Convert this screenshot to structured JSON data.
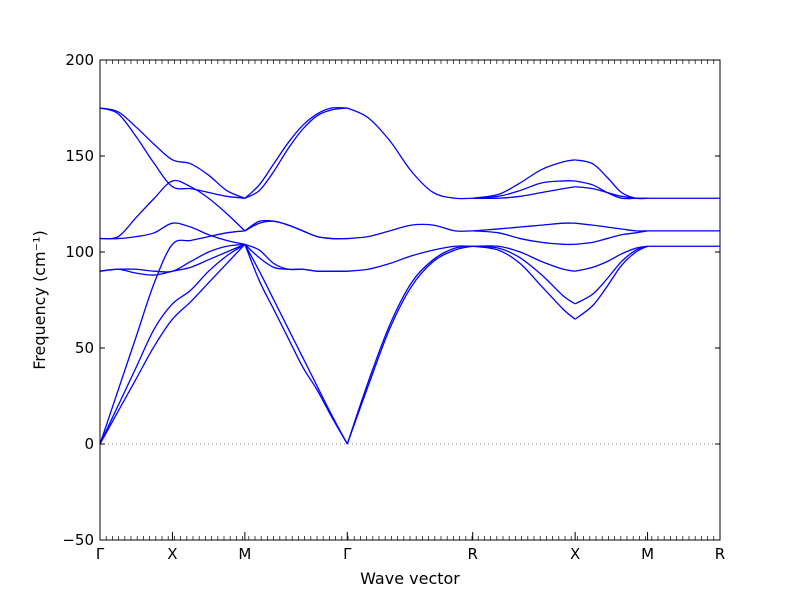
{
  "chart_data": {
    "type": "line",
    "title": "",
    "xlabel": "Wave vector",
    "ylabel": "Frequency (cm⁻¹)",
    "ylim": [
      -50,
      200
    ],
    "y_ticks": [
      -50,
      0,
      50,
      100,
      150,
      200
    ],
    "y_tick_labels": [
      "−50",
      "0",
      "50",
      "100",
      "150",
      "200"
    ],
    "x_ticks": [
      {
        "label": "Γ",
        "x": 0
      },
      {
        "label": "X",
        "x": 1
      },
      {
        "label": "M",
        "x": 2
      },
      {
        "label": "Γ",
        "x": 3.414
      },
      {
        "label": "R",
        "x": 5.146
      },
      {
        "label": "X",
        "x": 6.56
      },
      {
        "label": "M",
        "x": 7.56
      },
      {
        "label": "R",
        "x": 8.56
      }
    ],
    "xlim": [
      0,
      8.56
    ],
    "zero_line": {
      "value": 0,
      "style": "dotted",
      "color": "#808080"
    },
    "series_color": "#0000ff",
    "series": [
      {
        "x": [
          0,
          0.25,
          0.5,
          0.75,
          1,
          1.25,
          1.5,
          1.75,
          2
        ],
        "values": [
          0,
          17,
          34,
          51,
          65,
          74,
          84,
          94,
          104
        ]
      },
      {
        "x": [
          0,
          0.25,
          0.5,
          0.75,
          1,
          1.25,
          1.5,
          1.75,
          2
        ],
        "values": [
          0,
          20,
          40,
          60,
          73,
          80,
          90,
          98,
          104
        ]
      },
      {
        "x": [
          0,
          0.25,
          0.5,
          0.75,
          1,
          1.25,
          1.5,
          1.75,
          2
        ],
        "values": [
          0,
          28,
          56,
          84,
          104,
          106,
          108,
          110,
          111
        ]
      },
      {
        "x": [
          0,
          0.25,
          0.5,
          0.75,
          1,
          1.25,
          1.5,
          1.75,
          2
        ],
        "values": [
          90,
          91,
          89,
          88,
          90,
          92,
          96,
          100,
          104
        ]
      },
      {
        "x": [
          0,
          0.25,
          0.5,
          0.75,
          1,
          1.25,
          1.5,
          1.75,
          2
        ],
        "values": [
          90,
          91,
          91,
          90,
          90,
          95,
          100,
          103,
          104
        ]
      },
      {
        "x": [
          0,
          0.25,
          0.5,
          0.75,
          1,
          1.25,
          1.5,
          1.75,
          2
        ],
        "values": [
          107,
          107,
          108,
          110,
          115,
          113,
          109,
          106,
          104
        ]
      },
      {
        "x": [
          0,
          0.25,
          0.5,
          0.75,
          1,
          1.25,
          1.5,
          1.75,
          2
        ],
        "values": [
          107,
          108,
          118,
          128,
          137,
          134,
          128,
          120,
          111
        ]
      },
      {
        "x": [
          0,
          0.25,
          0.5,
          0.75,
          1,
          1.25,
          1.5,
          1.75,
          2
        ],
        "values": [
          175,
          172,
          160,
          146,
          134,
          133,
          131,
          129,
          128
        ]
      },
      {
        "x": [
          0,
          0.25,
          0.5,
          0.75,
          1,
          1.25,
          1.5,
          1.75,
          2
        ],
        "values": [
          175,
          173,
          165,
          156,
          148,
          146,
          140,
          132,
          128
        ]
      },
      {
        "x": [
          2,
          2.2,
          2.4,
          2.6,
          2.8,
          3.0,
          3.2,
          3.414
        ],
        "values": [
          104,
          97,
          92,
          91,
          91,
          90,
          90,
          90
        ]
      },
      {
        "x": [
          2,
          2.2,
          2.4,
          2.6,
          2.8,
          3.0,
          3.2,
          3.414
        ],
        "values": [
          104,
          101,
          94,
          91,
          91,
          90,
          90,
          90
        ]
      },
      {
        "x": [
          2,
          2.2,
          2.4,
          2.6,
          2.8,
          3.0,
          3.2,
          3.414
        ],
        "values": [
          104,
          85,
          70,
          55,
          40,
          28,
          14,
          0
        ]
      },
      {
        "x": [
          2,
          2.2,
          2.4,
          2.6,
          2.8,
          3.0,
          3.2,
          3.414
        ],
        "values": [
          104,
          90,
          75,
          60,
          45,
          30,
          15,
          0
        ]
      },
      {
        "x": [
          2,
          2.2,
          2.4,
          2.6,
          2.8,
          3.0,
          3.2,
          3.414
        ],
        "values": [
          111,
          115,
          116,
          114,
          111,
          108,
          107,
          107
        ]
      },
      {
        "x": [
          2,
          2.2,
          2.4,
          2.6,
          2.8,
          3.0,
          3.2,
          3.414
        ],
        "values": [
          111,
          116,
          116,
          114,
          111,
          108,
          107,
          107
        ]
      },
      {
        "x": [
          2,
          2.2,
          2.4,
          2.6,
          2.8,
          3.0,
          3.2,
          3.414
        ],
        "values": [
          128,
          135,
          146,
          157,
          166,
          172,
          175,
          175
        ]
      },
      {
        "x": [
          2,
          2.2,
          2.4,
          2.6,
          2.8,
          3.0,
          3.2,
          3.414
        ],
        "values": [
          128,
          132,
          142,
          154,
          164,
          171,
          174,
          175
        ]
      },
      {
        "x": [
          3.414,
          3.7,
          4.0,
          4.3,
          4.6,
          4.9,
          5.146
        ],
        "values": [
          0,
          30,
          60,
          82,
          95,
          101,
          103
        ]
      },
      {
        "x": [
          3.414,
          3.7,
          4.0,
          4.3,
          4.6,
          4.9,
          5.146
        ],
        "values": [
          0,
          32,
          62,
          84,
          96,
          102,
          103
        ]
      },
      {
        "x": [
          3.414,
          3.7,
          4.0,
          4.3,
          4.6,
          4.9,
          5.146
        ],
        "values": [
          90,
          91,
          94,
          98,
          101,
          103,
          103
        ]
      },
      {
        "x": [
          3.414,
          3.7,
          4.0,
          4.3,
          4.6,
          4.9,
          5.146
        ],
        "values": [
          107,
          108,
          111,
          114,
          114,
          111,
          111
        ]
      },
      {
        "x": [
          3.414,
          3.7,
          4.0,
          4.3,
          4.6,
          4.9,
          5.146
        ],
        "values": [
          175,
          170,
          158,
          142,
          131,
          128,
          128
        ]
      },
      {
        "x": [
          5.146,
          5.5,
          5.8,
          6.1,
          6.4,
          6.56
        ],
        "values": [
          103,
          102,
          97,
          88,
          77,
          73
        ]
      },
      {
        "x": [
          5.146,
          5.5,
          5.8,
          6.1,
          6.4,
          6.56
        ],
        "values": [
          103,
          101,
          94,
          82,
          70,
          65
        ]
      },
      {
        "x": [
          5.146,
          5.5,
          5.8,
          6.1,
          6.4,
          6.56
        ],
        "values": [
          103,
          103,
          100,
          95,
          91,
          90
        ]
      },
      {
        "x": [
          5.146,
          5.5,
          5.8,
          6.1,
          6.4,
          6.56
        ],
        "values": [
          111,
          110,
          107,
          105,
          104,
          104
        ]
      },
      {
        "x": [
          5.146,
          5.5,
          5.8,
          6.1,
          6.4,
          6.56
        ],
        "values": [
          111,
          112,
          113,
          114,
          115,
          115
        ]
      },
      {
        "x": [
          5.146,
          5.5,
          5.8,
          6.1,
          6.4,
          6.56
        ],
        "values": [
          128,
          128,
          129,
          131,
          133,
          134
        ]
      },
      {
        "x": [
          5.146,
          5.5,
          5.8,
          6.1,
          6.4,
          6.56
        ],
        "values": [
          128,
          129,
          132,
          136,
          137,
          137
        ]
      },
      {
        "x": [
          5.146,
          5.5,
          5.8,
          6.1,
          6.4,
          6.56
        ],
        "values": [
          128,
          130,
          136,
          143,
          147,
          148
        ]
      },
      {
        "x": [
          6.56,
          6.8,
          7.0,
          7.2,
          7.4,
          7.56
        ],
        "values": [
          65,
          72,
          82,
          93,
          100,
          103
        ]
      },
      {
        "x": [
          6.56,
          6.8,
          7.0,
          7.2,
          7.4,
          7.56
        ],
        "values": [
          73,
          78,
          86,
          95,
          101,
          103
        ]
      },
      {
        "x": [
          6.56,
          6.8,
          7.0,
          7.2,
          7.4,
          7.56
        ],
        "values": [
          90,
          92,
          95,
          99,
          102,
          103
        ]
      },
      {
        "x": [
          6.56,
          6.8,
          7.0,
          7.2,
          7.4,
          7.56
        ],
        "values": [
          104,
          105,
          107,
          109,
          110,
          111
        ]
      },
      {
        "x": [
          6.56,
          6.8,
          7.0,
          7.2,
          7.4,
          7.56
        ],
        "values": [
          115,
          114,
          113,
          112,
          111,
          111
        ]
      },
      {
        "x": [
          6.56,
          6.8,
          7.0,
          7.2,
          7.4,
          7.56
        ],
        "values": [
          134,
          133,
          131,
          129,
          128,
          128
        ]
      },
      {
        "x": [
          6.56,
          6.8,
          7.0,
          7.2,
          7.4,
          7.56
        ],
        "values": [
          137,
          135,
          131,
          128,
          128,
          128
        ]
      },
      {
        "x": [
          6.56,
          6.8,
          7.0,
          7.2,
          7.4,
          7.56
        ],
        "values": [
          148,
          146,
          139,
          131,
          128,
          128
        ]
      },
      {
        "x": [
          7.56,
          8.56
        ],
        "values": [
          103,
          103
        ]
      },
      {
        "x": [
          7.56,
          8.56
        ],
        "values": [
          111,
          111
        ]
      },
      {
        "x": [
          7.56,
          8.56
        ],
        "values": [
          128,
          128
        ]
      }
    ]
  }
}
